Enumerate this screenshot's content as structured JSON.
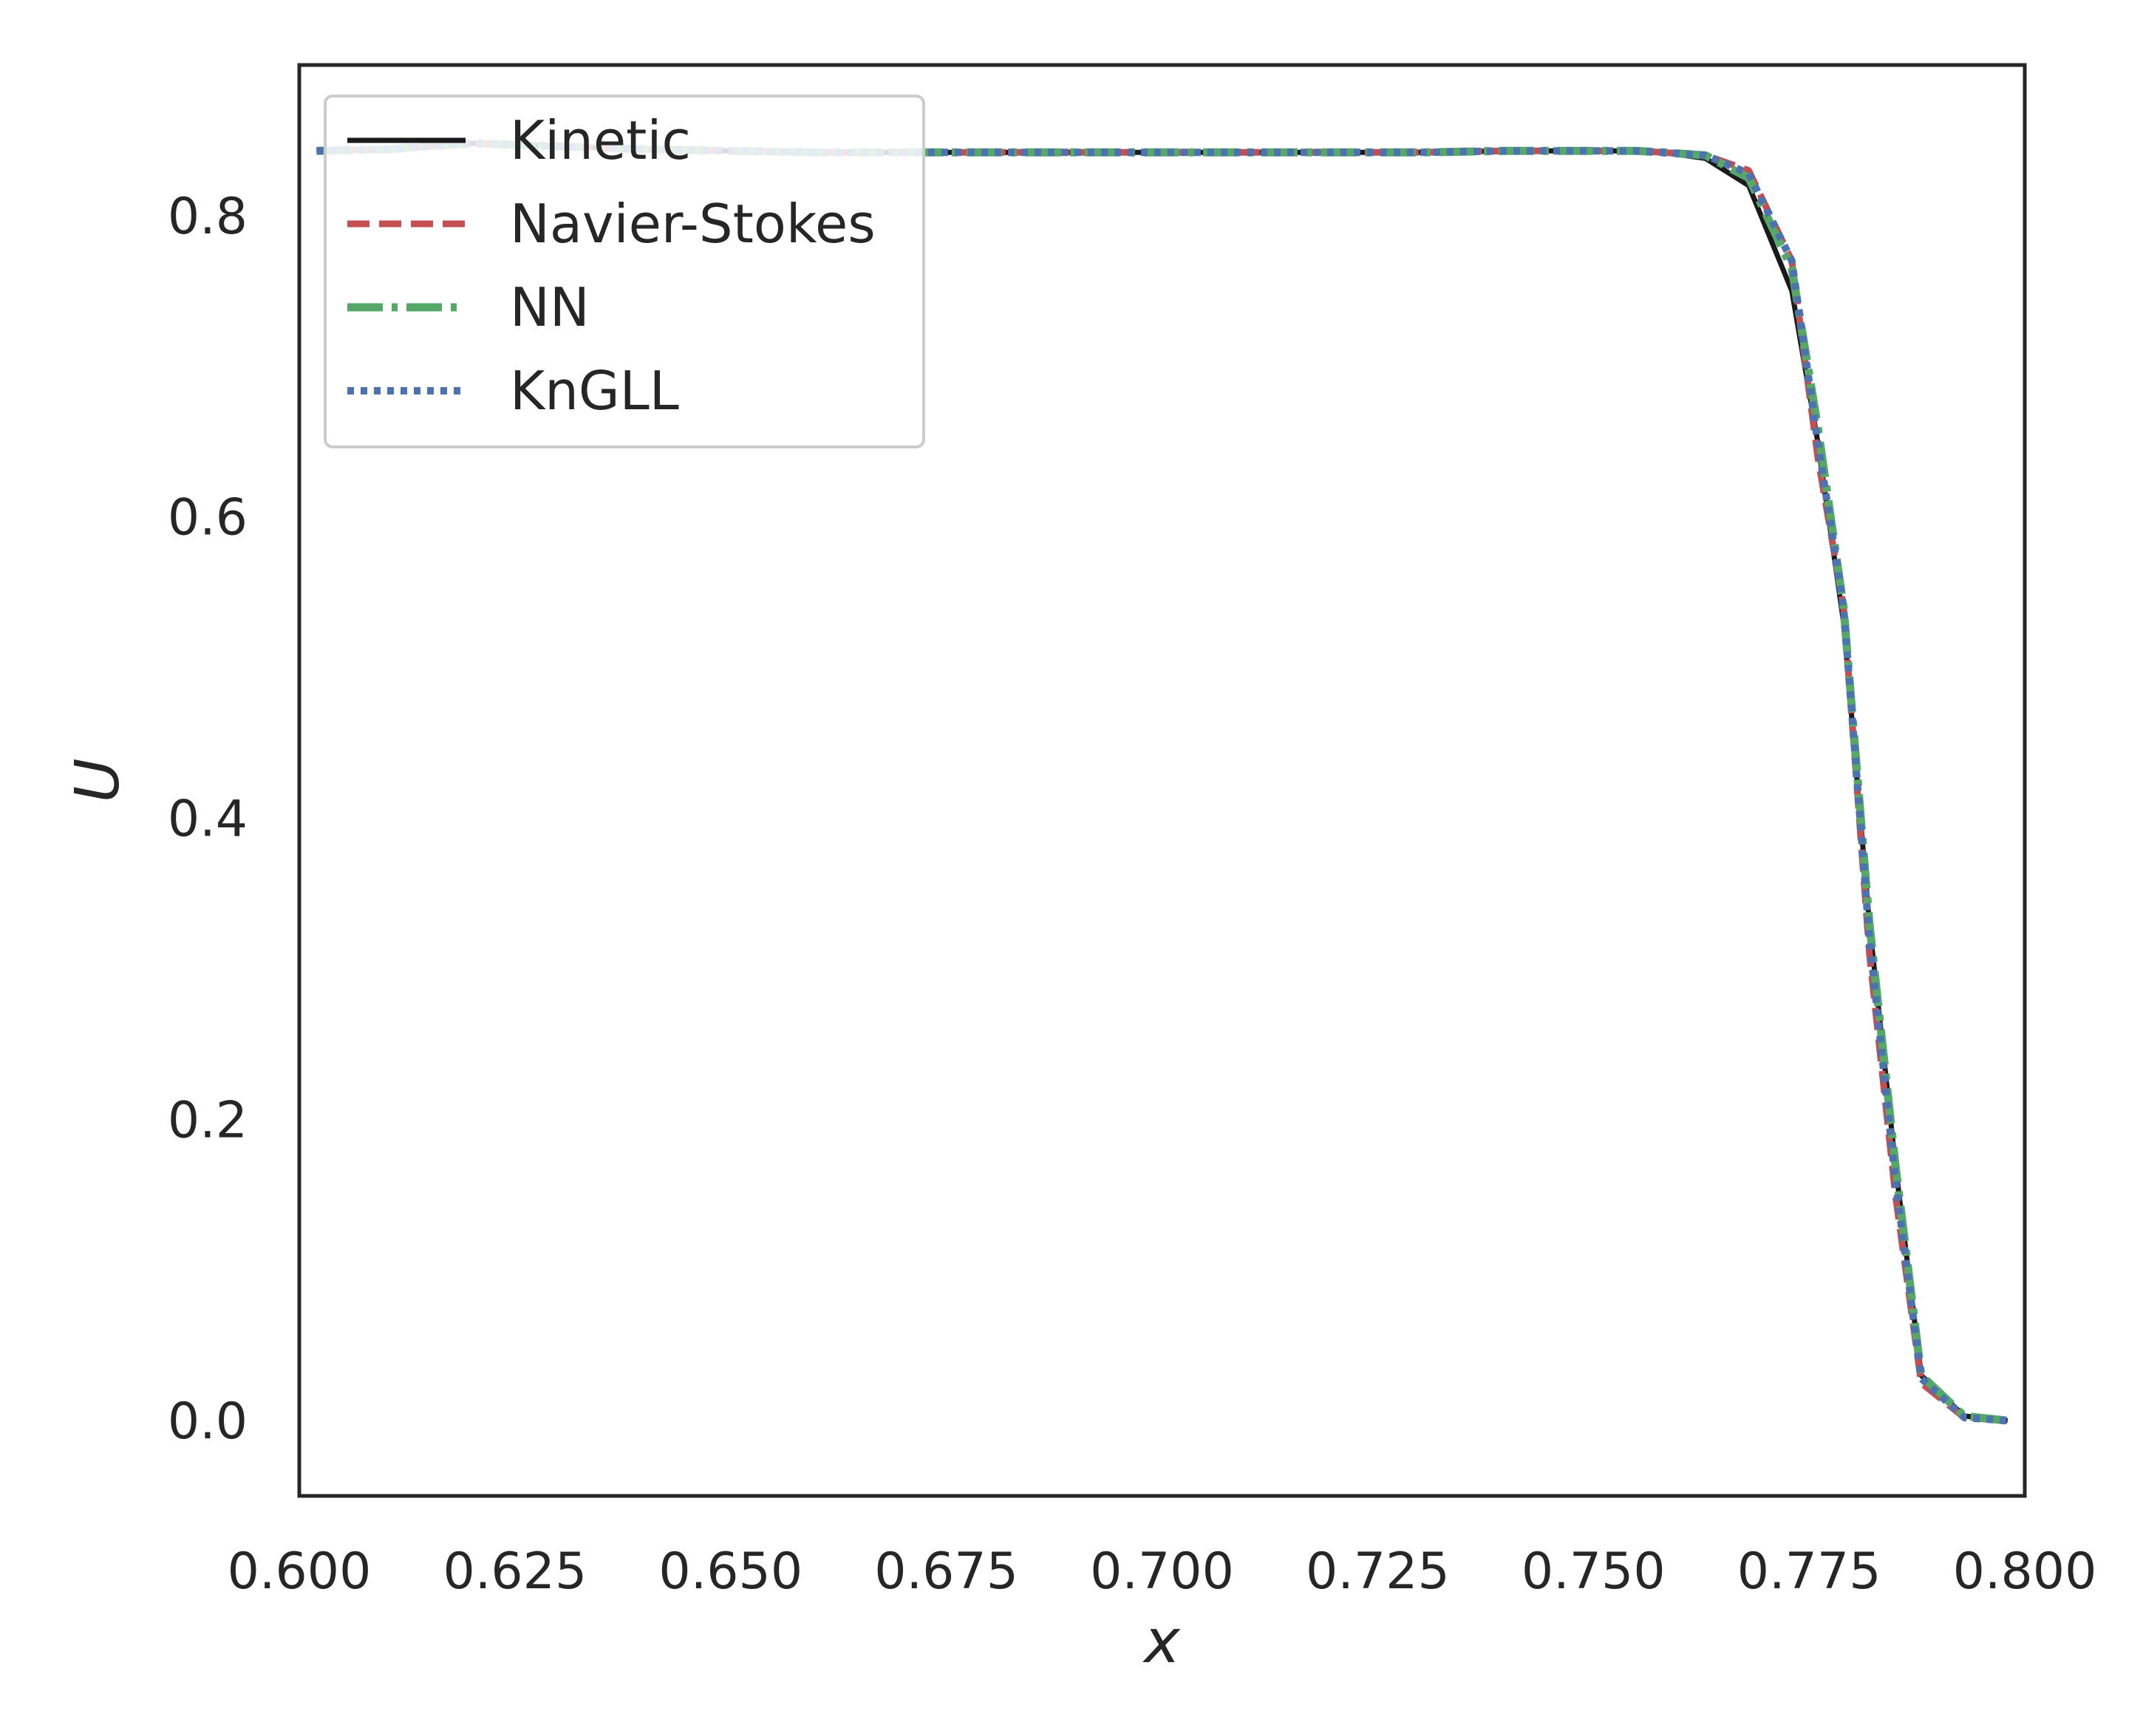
{
  "chart_data": {
    "type": "line",
    "title": "",
    "xlabel": "x",
    "ylabel": "U",
    "xlim": [
      0.6,
      0.8
    ],
    "ylim": [
      -0.05,
      0.9
    ],
    "x_ticks": [
      "0.600",
      "0.625",
      "0.650",
      "0.675",
      "0.700",
      "0.725",
      "0.750",
      "0.775",
      "0.800"
    ],
    "y_ticks": [
      "0.0",
      "0.2",
      "0.4",
      "0.6",
      "0.8"
    ],
    "grid": false,
    "legend_position": "top-left",
    "series": [
      {
        "name": "Kinetic",
        "color": "#1a1a1a",
        "style": "solid",
        "x": [
          0.602,
          0.61,
          0.62,
          0.63,
          0.64,
          0.65,
          0.66,
          0.67,
          0.68,
          0.69,
          0.7,
          0.71,
          0.72,
          0.73,
          0.74,
          0.75,
          0.755,
          0.758,
          0.763,
          0.768,
          0.773,
          0.776,
          0.779,
          0.782,
          0.785,
          0.788,
          0.793,
          0.798
        ],
        "y": [
          0.843,
          0.844,
          0.848,
          0.846,
          0.844,
          0.843,
          0.842,
          0.842,
          0.842,
          0.842,
          0.842,
          0.842,
          0.842,
          0.842,
          0.843,
          0.843,
          0.843,
          0.842,
          0.838,
          0.82,
          0.75,
          0.65,
          0.53,
          0.33,
          0.17,
          0.03,
          0.003,
          0.0
        ]
      },
      {
        "name": "Navier-Stokes",
        "color": "#c44e52",
        "style": "dashed",
        "x": [
          0.602,
          0.61,
          0.62,
          0.63,
          0.64,
          0.65,
          0.66,
          0.67,
          0.68,
          0.69,
          0.7,
          0.71,
          0.72,
          0.73,
          0.74,
          0.75,
          0.755,
          0.758,
          0.763,
          0.768,
          0.773,
          0.776,
          0.779,
          0.782,
          0.785,
          0.788,
          0.793,
          0.798
        ],
        "y": [
          0.843,
          0.844,
          0.848,
          0.846,
          0.844,
          0.843,
          0.842,
          0.842,
          0.842,
          0.842,
          0.842,
          0.842,
          0.842,
          0.842,
          0.843,
          0.843,
          0.843,
          0.842,
          0.84,
          0.83,
          0.77,
          0.64,
          0.54,
          0.31,
          0.15,
          0.025,
          0.002,
          0.0
        ]
      },
      {
        "name": "NN",
        "color": "#55a868",
        "style": "dashdot",
        "x": [
          0.602,
          0.61,
          0.62,
          0.63,
          0.64,
          0.65,
          0.66,
          0.67,
          0.68,
          0.69,
          0.7,
          0.71,
          0.72,
          0.73,
          0.74,
          0.75,
          0.755,
          0.758,
          0.763,
          0.768,
          0.773,
          0.776,
          0.779,
          0.782,
          0.785,
          0.788,
          0.793,
          0.798
        ],
        "y": [
          0.843,
          0.844,
          0.848,
          0.846,
          0.844,
          0.843,
          0.842,
          0.842,
          0.842,
          0.842,
          0.842,
          0.842,
          0.842,
          0.842,
          0.843,
          0.843,
          0.843,
          0.842,
          0.84,
          0.825,
          0.765,
          0.66,
          0.54,
          0.33,
          0.17,
          0.03,
          0.003,
          0.0
        ]
      },
      {
        "name": "KnGLL",
        "color": "#4c72b0",
        "style": "dotted",
        "x": [
          0.602,
          0.61,
          0.62,
          0.63,
          0.64,
          0.65,
          0.66,
          0.67,
          0.68,
          0.69,
          0.7,
          0.71,
          0.72,
          0.73,
          0.74,
          0.75,
          0.755,
          0.758,
          0.763,
          0.768,
          0.773,
          0.776,
          0.779,
          0.782,
          0.785,
          0.788,
          0.793,
          0.798
        ],
        "y": [
          0.843,
          0.844,
          0.848,
          0.846,
          0.844,
          0.843,
          0.842,
          0.842,
          0.842,
          0.842,
          0.842,
          0.842,
          0.842,
          0.842,
          0.843,
          0.843,
          0.843,
          0.842,
          0.84,
          0.828,
          0.77,
          0.65,
          0.54,
          0.32,
          0.16,
          0.028,
          0.002,
          0.0
        ]
      }
    ]
  }
}
